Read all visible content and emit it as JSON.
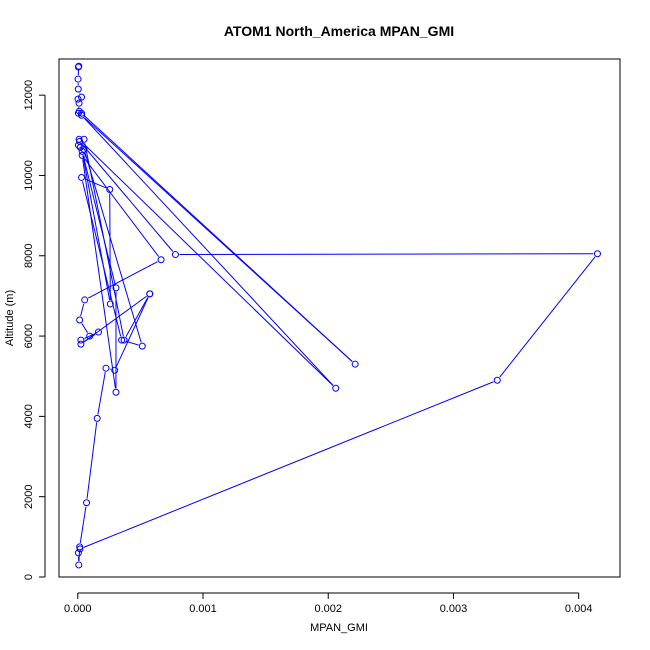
{
  "chart_data": {
    "type": "line",
    "title": "ATOM1 North_America MPAN_GMI",
    "xlabel": "MPAN_GMI",
    "ylabel": "Altitude (m)",
    "xlim": [
      -0.00015,
      0.00433
    ],
    "ylim": [
      0,
      12900
    ],
    "xticks": [
      0,
      0.001,
      0.002,
      0.003,
      0.004
    ],
    "xtick_labels": [
      "0.000",
      "0.001",
      "0.002",
      "0.003",
      "0.004"
    ],
    "yticks": [
      0,
      2000,
      4000,
      6000,
      8000,
      10000,
      12000
    ],
    "ytick_labels": [
      "0",
      "2000",
      "4000",
      "6000",
      "8000",
      "10000",
      "12000"
    ],
    "grid": false,
    "marker": "open-circle",
    "colors": {
      "series": "#0000ff",
      "axes": "#000000",
      "background": "#ffffff"
    },
    "series": [
      {
        "points": [
          [
            5e-06,
            12700
          ],
          [
            8e-06,
            12720
          ],
          [
            2e-06,
            12400
          ],
          [
            4e-06,
            12150
          ],
          [
            3e-05,
            11950
          ],
          [
            2e-06,
            11900
          ],
          [
            1e-05,
            11800
          ],
          [
            5e-06,
            11550
          ],
          [
            1.2e-05,
            11600
          ],
          [
            3e-05,
            11550
          ],
          [
            0.002215,
            5300
          ],
          [
            3e-05,
            11500
          ],
          [
            0.00206,
            4700
          ],
          [
            1e-05,
            10900
          ],
          [
            1.5e-05,
            10850
          ],
          [
            0.00078,
            8030
          ],
          [
            0.00415,
            8050
          ],
          [
            0.00335,
            4900
          ],
          [
            1.8e-05,
            700
          ],
          [
            5e-06,
            600
          ],
          [
            8e-06,
            300
          ],
          [
            1.5e-05,
            750
          ],
          [
            7e-05,
            1850
          ],
          [
            0.000155,
            3950
          ],
          [
            0.000225,
            5200
          ],
          [
            0.000295,
            5150
          ],
          [
            0.000575,
            7050
          ],
          [
            0.00037,
            5900
          ],
          [
            5e-05,
            10900
          ],
          [
            2e-05,
            10700
          ],
          [
            5e-06,
            10750
          ],
          [
            5e-05,
            10650
          ],
          [
            0.000515,
            5750
          ],
          [
            0.00035,
            5900
          ],
          [
            3e-05,
            9950
          ],
          [
            0.000255,
            9650
          ],
          [
            0.00026,
            6800
          ],
          [
            3.5e-05,
            10600
          ],
          [
            0.000305,
            7200
          ],
          [
            0.000305,
            4600
          ],
          [
            3.5e-05,
            10500
          ],
          [
            0.000665,
            7900
          ],
          [
            5.5e-05,
            6900
          ],
          [
            1.5e-05,
            6400
          ],
          [
            9.5e-05,
            6000
          ],
          [
            2.5e-05,
            5900
          ],
          [
            0.000165,
            6100
          ],
          [
            2.5e-05,
            5800
          ],
          [
            0.000575,
            7050
          ]
        ]
      }
    ]
  }
}
